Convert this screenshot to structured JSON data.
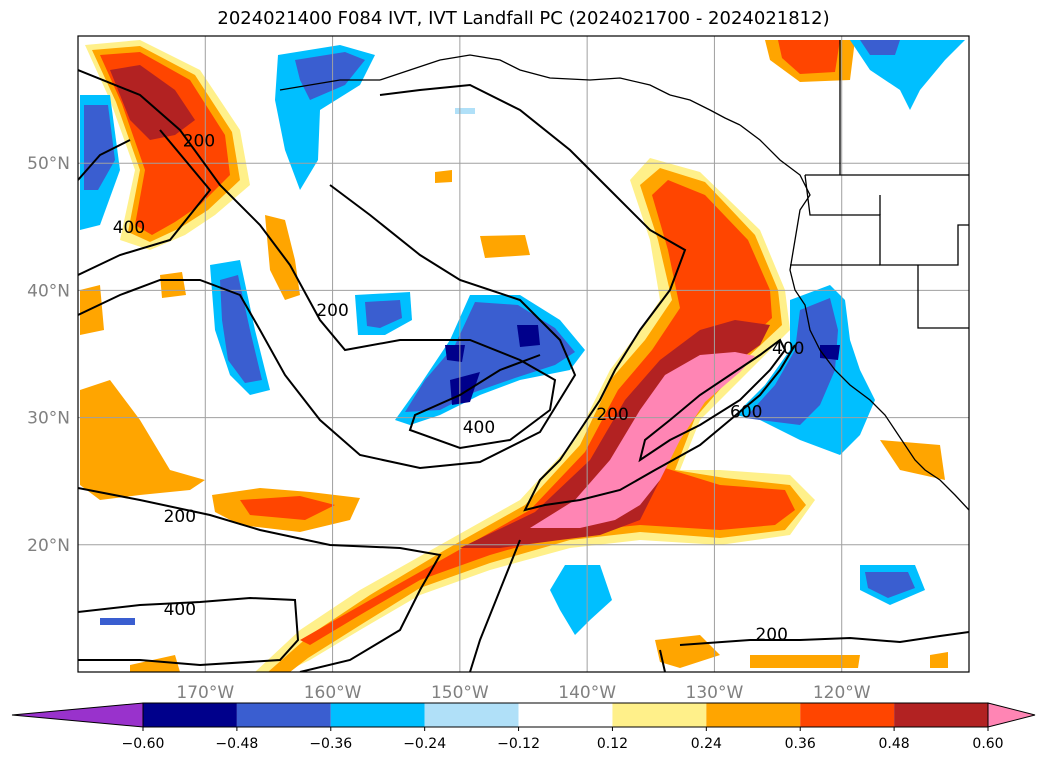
{
  "title": "2024021400 F084 IVT, IVT Landfall PC (2024021700 - 2024021812)",
  "map": {
    "lon_range": [
      -180,
      -110
    ],
    "lat_range": [
      10,
      60
    ],
    "lat_ticks": [
      {
        "value": 50,
        "label": "50°N"
      },
      {
        "value": 40,
        "label": "40°N"
      },
      {
        "value": 30,
        "label": "30°N"
      },
      {
        "value": 20,
        "label": "20°N"
      }
    ],
    "lon_ticks": [
      {
        "value": -170,
        "label": "170°W"
      },
      {
        "value": -160,
        "label": "160°W"
      },
      {
        "value": -150,
        "label": "150°W"
      },
      {
        "value": -140,
        "label": "140°W"
      },
      {
        "value": -130,
        "label": "130°W"
      },
      {
        "value": -120,
        "label": "120°W"
      }
    ],
    "grid": true,
    "contour_labels": [
      {
        "text": "200",
        "lon": -170.5,
        "lat": 51.3
      },
      {
        "text": "400",
        "lon": -176.0,
        "lat": 44.5
      },
      {
        "text": "200",
        "lon": -160.0,
        "lat": 38.0
      },
      {
        "text": "400",
        "lon": -148.5,
        "lat": 28.8
      },
      {
        "text": "200",
        "lon": -138.0,
        "lat": 29.8
      },
      {
        "text": "400",
        "lon": -124.2,
        "lat": 35.0
      },
      {
        "text": "600",
        "lon": -127.5,
        "lat": 30.0
      },
      {
        "text": "200",
        "lon": -172.0,
        "lat": 21.8
      },
      {
        "text": "400",
        "lon": -172.0,
        "lat": 14.5
      },
      {
        "text": "200",
        "lon": -125.5,
        "lat": 12.5
      }
    ]
  },
  "colorbar": {
    "colors": [
      "#9932cc",
      "#00008b",
      "#3a5ed0",
      "#00bfff",
      "#b0e0f8",
      "#ffffff",
      "#fff08a",
      "#ffa500",
      "#ff4500",
      "#b22222",
      "#ff85b4"
    ],
    "ticks": [
      "−0.60",
      "−0.48",
      "−0.36",
      "−0.24",
      "−0.12",
      "0.12",
      "0.24",
      "0.36",
      "0.48",
      "0.60"
    ]
  }
}
